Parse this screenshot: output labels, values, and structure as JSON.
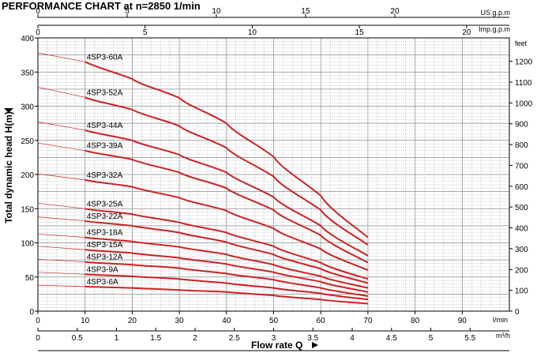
{
  "chart_data": {
    "type": "line",
    "title": "PERFORMANCE CHART at n=2850 1/min",
    "ylabel": "Total dynamic head H(m)",
    "xlabel": "Flow rate Q",
    "ylim": [
      0,
      400
    ],
    "xlim_lpm": [
      0,
      100
    ],
    "grid": true,
    "y_ticks": [
      "0",
      "50",
      "100",
      "150",
      "200",
      "250",
      "300",
      "350",
      "400"
    ],
    "feet_unit": "feet",
    "feet_ticks": [
      "0",
      "100",
      "200",
      "300",
      "400",
      "500",
      "600",
      "700",
      "800",
      "900",
      "1000",
      "1100",
      "1200"
    ],
    "lpm_unit": "l/min",
    "lpm_ticks": [
      "0",
      "10",
      "20",
      "30",
      "40",
      "50",
      "60",
      "70",
      "80",
      "90"
    ],
    "m3h_unit": "m³/h",
    "m3h_ticks": [
      "0",
      "0.5",
      "1",
      "1.5",
      "2",
      "2.5",
      "3",
      "3.5",
      "4",
      "4.5",
      "5",
      "5.5"
    ],
    "usgpm_unit": "US g.p.m",
    "usgpm_ticks": [
      "0",
      "5",
      "10",
      "15",
      "20"
    ],
    "impgpm_unit": "Imp.g.p.m",
    "impgpm_ticks": [
      "0",
      "5",
      "10",
      "15",
      "20"
    ],
    "x_lpm": [
      0,
      10,
      20,
      30,
      40,
      50,
      60,
      70
    ],
    "line_color": "#cc2222",
    "grid_color": "#8a8a8a",
    "series": [
      {
        "name": "4SP3-60A",
        "values": [
          378,
          365,
          340,
          312,
          275,
          226,
          169,
          108
        ]
      },
      {
        "name": "4SP3-52A",
        "values": [
          328,
          313,
          295,
          271,
          239,
          197,
          148,
          97
        ]
      },
      {
        "name": "4SP3-44A",
        "values": [
          277,
          265,
          250,
          229,
          203,
          167,
          125,
          81
        ]
      },
      {
        "name": "4SP3-39A",
        "values": [
          246,
          235,
          222,
          203,
          180,
          148,
          111,
          71
        ]
      },
      {
        "name": "4SP3-32A",
        "values": [
          201,
          192,
          182,
          166,
          147,
          121,
          91,
          60
        ]
      },
      {
        "name": "4SP3-25A",
        "values": [
          158,
          150,
          142,
          130,
          115,
          95,
          71,
          47
        ]
      },
      {
        "name": "4SP3-22A",
        "values": [
          138,
          132,
          125,
          115,
          101,
          83,
          62,
          41
        ]
      },
      {
        "name": "4SP3-18A",
        "values": [
          113,
          108,
          102,
          94,
          83,
          68,
          51,
          34
        ]
      },
      {
        "name": "4SP3-15A",
        "values": [
          95,
          90,
          85,
          78,
          69,
          57,
          43,
          28
        ]
      },
      {
        "name": "4SP3-12A",
        "values": [
          76,
          72,
          68,
          63,
          55,
          46,
          34,
          22
        ]
      },
      {
        "name": "4SP3-9A",
        "values": [
          57,
          54,
          51,
          47,
          41,
          34,
          26,
          17
        ]
      },
      {
        "name": "4SP3-6A",
        "values": [
          38,
          36,
          34,
          31,
          28,
          23,
          17,
          11
        ]
      }
    ]
  }
}
